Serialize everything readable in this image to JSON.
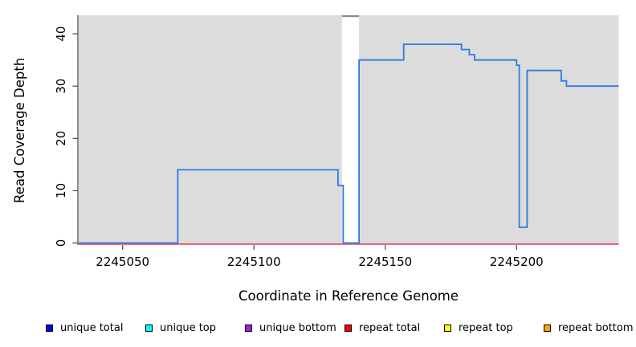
{
  "figure": {
    "x_axis_title": "Coordinate in Reference Genome",
    "y_axis_title": "Read Coverage Depth"
  },
  "legend": {
    "items": [
      {
        "label": "unique total",
        "color": "#0000FF"
      },
      {
        "label": "unique top",
        "color": "#00FFFF"
      },
      {
        "label": "unique bottom",
        "color": "#A020F0"
      },
      {
        "label": "repeat total",
        "color": "#FF0000"
      },
      {
        "label": "repeat top",
        "color": "#FFFF00"
      },
      {
        "label": "repeat bottom",
        "color": "#FFA500"
      }
    ]
  },
  "chart_data": {
    "type": "line",
    "subtype": "step-after",
    "title": "",
    "xlabel": "Coordinate in Reference Genome",
    "ylabel": "Read Coverage Depth",
    "xlim": [
      2245033,
      2245239
    ],
    "ylim": [
      0,
      43
    ],
    "x_ticks": [
      2245050,
      2245100,
      2245150,
      2245200
    ],
    "y_ticks": [
      0,
      10,
      20,
      30,
      40
    ],
    "grid": "off",
    "plot_background": "#DCDCDC",
    "gap_band": {
      "x_start": 2245133.5,
      "x_end": 2245140,
      "fill": "#FFFFFF",
      "cap_color": "#8A8A8A"
    },
    "series": [
      {
        "name": "unique total",
        "color": "#2F7AE3",
        "style": "step-after",
        "steps": [
          [
            2245033,
            0
          ],
          [
            2245071,
            14
          ],
          [
            2245132,
            11
          ],
          [
            2245134,
            0
          ],
          [
            2245140,
            35
          ],
          [
            2245157,
            38
          ],
          [
            2245179,
            37
          ],
          [
            2245182,
            36
          ],
          [
            2245184,
            35
          ],
          [
            2245200,
            34
          ],
          [
            2245201,
            3
          ],
          [
            2245204,
            33
          ],
          [
            2245217,
            31
          ],
          [
            2245219,
            30
          ]
        ],
        "end_x": 2245239
      },
      {
        "name": "repeat total",
        "color": "#E8506B",
        "style": "constant",
        "value": 0
      }
    ]
  }
}
